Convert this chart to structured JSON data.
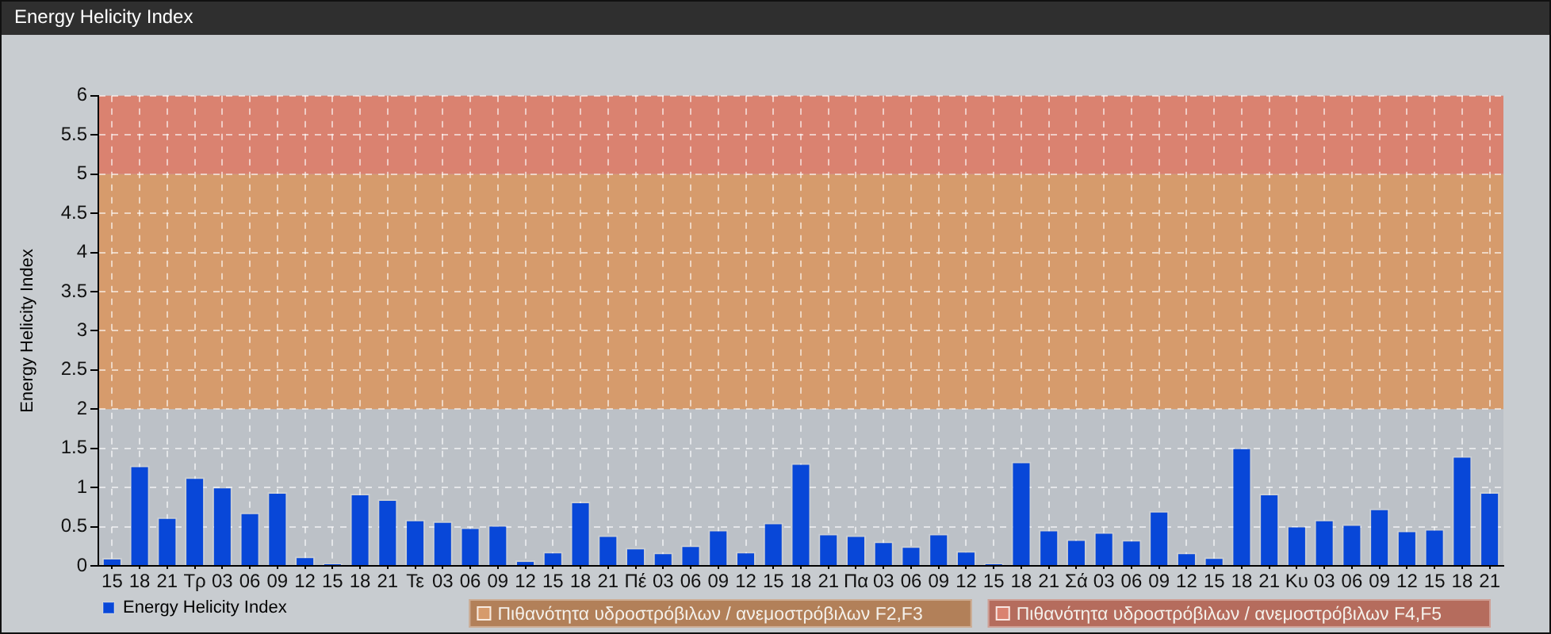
{
  "chart_data": {
    "type": "bar",
    "title": "Energy Helicity Index",
    "ylabel": "Energy Helicity Index",
    "categories": [
      "15",
      "18",
      "21",
      "Τρ",
      "03",
      "06",
      "09",
      "12",
      "15",
      "18",
      "21",
      "Τε",
      "03",
      "06",
      "09",
      "12",
      "15",
      "18",
      "21",
      "Πέ",
      "03",
      "06",
      "09",
      "12",
      "15",
      "18",
      "21",
      "Πα",
      "03",
      "06",
      "09",
      "12",
      "15",
      "18",
      "21",
      "Σά",
      "03",
      "06",
      "09",
      "12",
      "15",
      "18",
      "21",
      "Κυ",
      "03",
      "06",
      "09",
      "12",
      "15",
      "18",
      "21"
    ],
    "series": [
      {
        "name": "Energy Helicity Index",
        "color": "#0847d8",
        "values": [
          0.1,
          1.28,
          0.62,
          1.13,
          1.01,
          0.68,
          0.94,
          0.12,
          0.03,
          0.92,
          0.85,
          0.59,
          0.57,
          0.49,
          0.52,
          0.07,
          0.18,
          0.82,
          0.39,
          0.23,
          0.17,
          0.26,
          0.46,
          0.18,
          0.55,
          1.31,
          0.41,
          0.39,
          0.31,
          0.25,
          0.41,
          0.19,
          0.03,
          1.33,
          0.46,
          0.34,
          0.43,
          0.33,
          0.7,
          0.17,
          0.11,
          1.51,
          0.92,
          0.51,
          0.59,
          0.53,
          0.73,
          0.45,
          0.47,
          1.4,
          0.94
        ]
      }
    ],
    "ylim": [
      0,
      6
    ],
    "yticks": [
      0,
      0.5,
      1,
      1.5,
      2,
      2.5,
      3,
      3.5,
      4,
      4.5,
      5,
      5.5,
      6
    ],
    "grid": true,
    "legend": "bottom left",
    "bands": [
      {
        "axis": "y",
        "from": 2,
        "to": 5,
        "label": "Πιθανότητα υδροστρόβιλων / ανεμοστρόβιλων F2,F3",
        "color": "#d69b6c"
      },
      {
        "axis": "y",
        "from": 5,
        "to": 6,
        "label": "Πιθανότητα υδροστρόβιλων / ανεμοστρόβιλων F4,F5",
        "color": "#da8270"
      }
    ]
  }
}
